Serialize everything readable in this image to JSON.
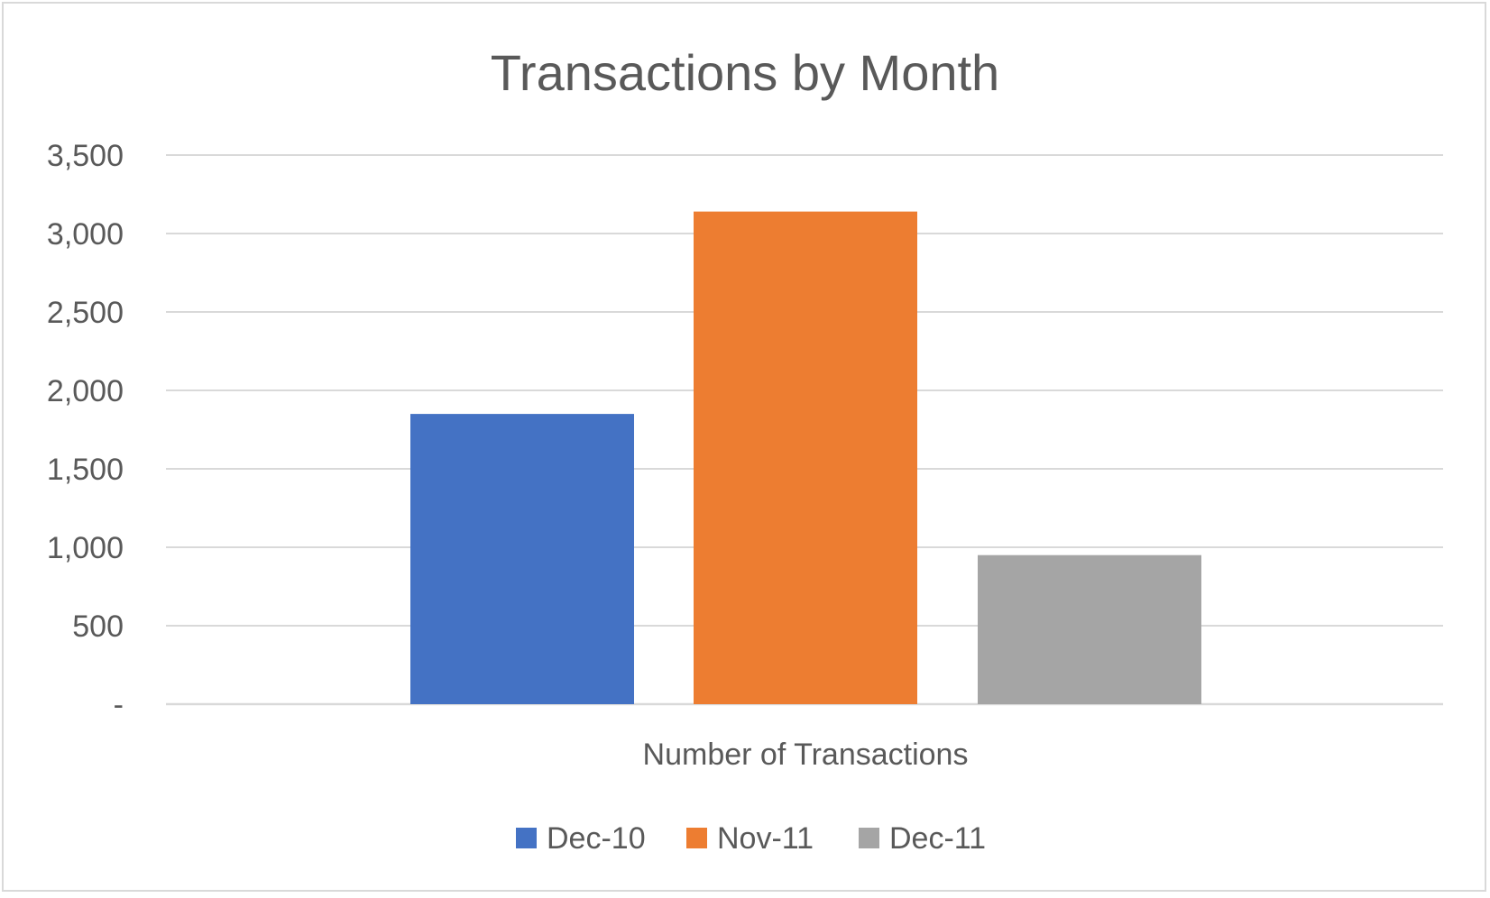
{
  "chart_data": {
    "type": "bar",
    "title": "Transactions by Month",
    "categories": [
      "Number of Transactions"
    ],
    "xlabel": "",
    "ylabel": "",
    "ylim": [
      0,
      3500
    ],
    "y_ticks": [
      0,
      500,
      1000,
      1500,
      2000,
      2500,
      3000,
      3500
    ],
    "y_tick_labels": [
      "-",
      "500",
      "1,000",
      "1,500",
      "2,000",
      "2,500",
      "3,000",
      "3,500"
    ],
    "grid": true,
    "legend_position": "bottom",
    "series": [
      {
        "name": "Dec-10",
        "values": [
          1850
        ],
        "color": "#4472C4"
      },
      {
        "name": "Nov-11",
        "values": [
          3140
        ],
        "color": "#ED7D31"
      },
      {
        "name": "Dec-11",
        "values": [
          950
        ],
        "color": "#A5A5A5"
      }
    ]
  }
}
